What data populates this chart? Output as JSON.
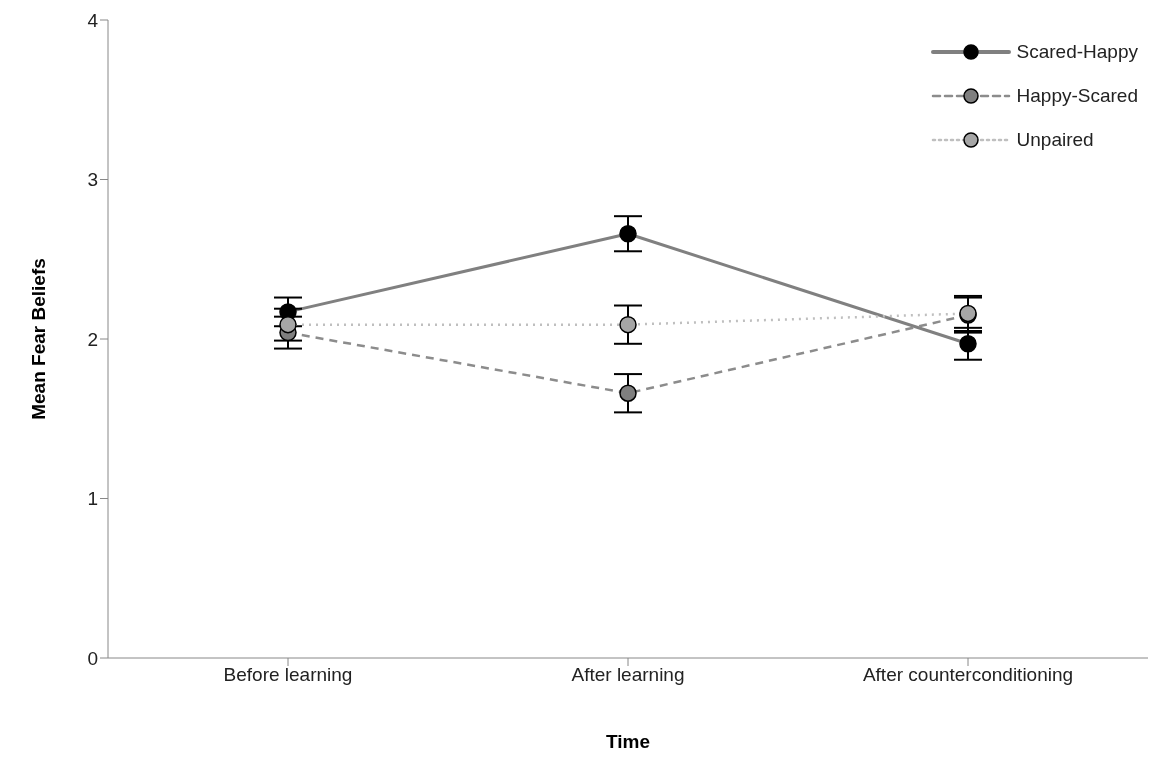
{
  "chart_data": {
    "type": "line",
    "xlabel": "Time",
    "ylabel": "Mean Fear Beliefs",
    "categories": [
      "Before learning",
      "After learning",
      "After counterconditioning"
    ],
    "ylim": [
      0,
      4
    ],
    "yticks": [
      0,
      1,
      2,
      3,
      4
    ],
    "grid": false,
    "legend": "top right",
    "marker": "circle",
    "series": [
      {
        "name": "Scared-Happy",
        "color": "#808080",
        "colors": [
          "#000000",
          "#000000",
          "#000000"
        ],
        "line_style": "solid",
        "values": [
          2.17,
          2.66,
          1.97
        ],
        "errors": [
          0.09,
          0.11,
          0.1
        ]
      },
      {
        "name": "Happy-Scared",
        "color": "#8c8c8c",
        "colors": [
          "#7f7f7f",
          "#7f7f7f",
          "#7f7f7f"
        ],
        "line_style": "dashed",
        "values": [
          2.04,
          1.66,
          2.15
        ],
        "errors": [
          0.1,
          0.12,
          0.11
        ]
      },
      {
        "name": "Unpaired",
        "color": "#bfbfbf",
        "colors": [
          "#a6a6a6",
          "#a6a6a6",
          "#a6a6a6"
        ],
        "line_style": "dotted",
        "values": [
          2.09,
          2.09,
          2.16
        ],
        "errors": [
          0.1,
          0.12,
          0.11
        ]
      }
    ]
  }
}
